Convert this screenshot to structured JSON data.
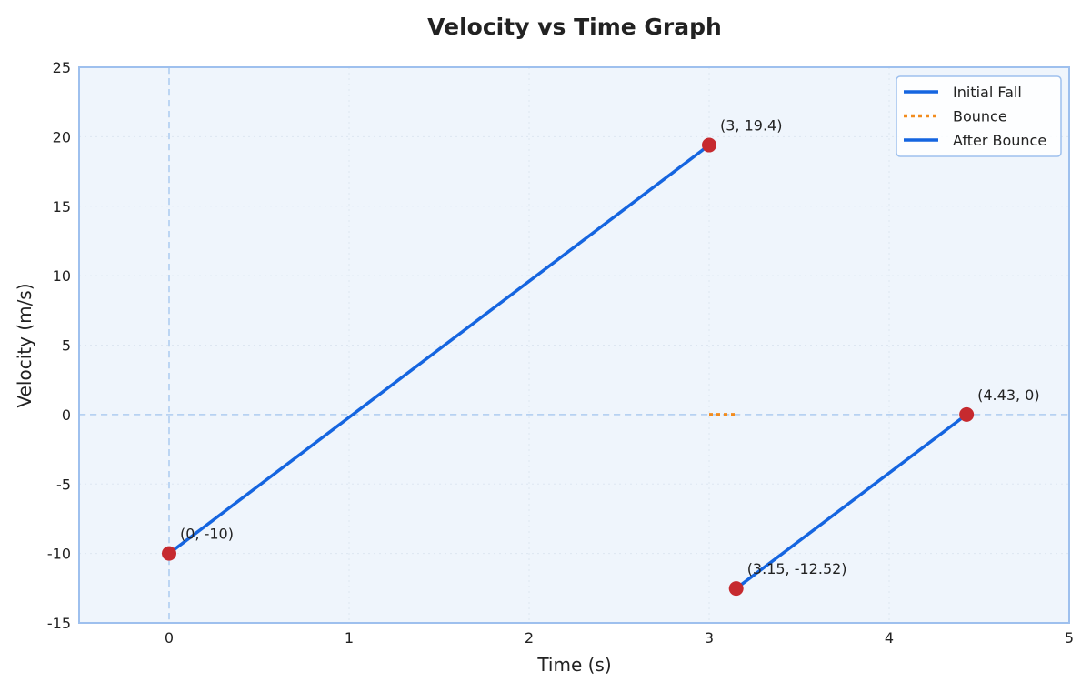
{
  "chart_data": {
    "type": "line",
    "title": "Velocity vs Time Graph",
    "xlabel": "Time (s)",
    "ylabel": "Velocity (m/s)",
    "xlim": [
      -0.5,
      5
    ],
    "ylim": [
      -15,
      25
    ],
    "x_ticks": [
      "0",
      "1",
      "2",
      "3",
      "4",
      "5"
    ],
    "y_ticks": [
      "-15",
      "-10",
      "-5",
      "0",
      "5",
      "10",
      "15",
      "20",
      "25"
    ],
    "grid": true,
    "legend_position": "top-right",
    "series": [
      {
        "name": "Initial Fall",
        "style": "solid",
        "color": "#1565e0",
        "x": [
          0,
          3
        ],
        "y": [
          -10,
          19.4
        ]
      },
      {
        "name": "Bounce",
        "style": "dotted",
        "color": "#f28c1e",
        "x": [
          3,
          3.15
        ],
        "y": [
          0,
          0
        ]
      },
      {
        "name": "After Bounce",
        "style": "solid",
        "color": "#1565e0",
        "x": [
          3.15,
          4.43
        ],
        "y": [
          -12.52,
          0
        ]
      }
    ],
    "points": [
      {
        "x": 0,
        "y": -10,
        "label": "(0, -10)"
      },
      {
        "x": 3,
        "y": 19.4,
        "label": "(3, 19.4)"
      },
      {
        "x": 3.15,
        "y": -12.52,
        "label": "(3.15, -12.52)"
      },
      {
        "x": 4.43,
        "y": 0,
        "label": "(4.43, 0)"
      }
    ],
    "reference_lines": [
      {
        "axis": "x",
        "value": 0
      },
      {
        "axis": "y",
        "value": 0
      }
    ],
    "colors": {
      "plot_background": "#eff5fc",
      "frame": "#9ec0ee",
      "reference_line": "#b7d2f2",
      "marker": "#c62a2f",
      "grid": "#dde6f1"
    }
  }
}
